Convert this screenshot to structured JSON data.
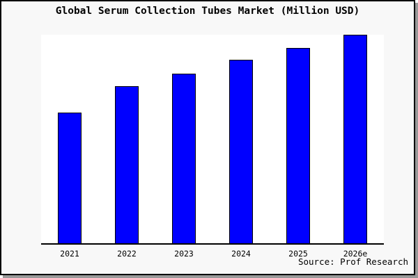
{
  "window": {
    "background": "#f8f8f8",
    "plot_background": "#ffffff",
    "frame_border_color": "#000000",
    "shadow_color": "#999999"
  },
  "chart_data": {
    "type": "bar",
    "title": "Global Serum Collection Tubes Market (Million USD)",
    "categories": [
      "2021",
      "2022",
      "2023",
      "2024",
      "2025",
      "2026e"
    ],
    "values": [
      62.7,
      75.3,
      81.5,
      87.9,
      93.8,
      100
    ],
    "value_note": "No y-axis ticks or data labels shown; values are bar heights as percent of the tallest (2026e) bar",
    "ylim": [
      0,
      100
    ],
    "grid": false,
    "legend": "none",
    "xlabel": "",
    "ylabel": "",
    "bar_fill": "#0000ff",
    "bar_stroke": "#000000",
    "source": "Source: Prof Research"
  }
}
